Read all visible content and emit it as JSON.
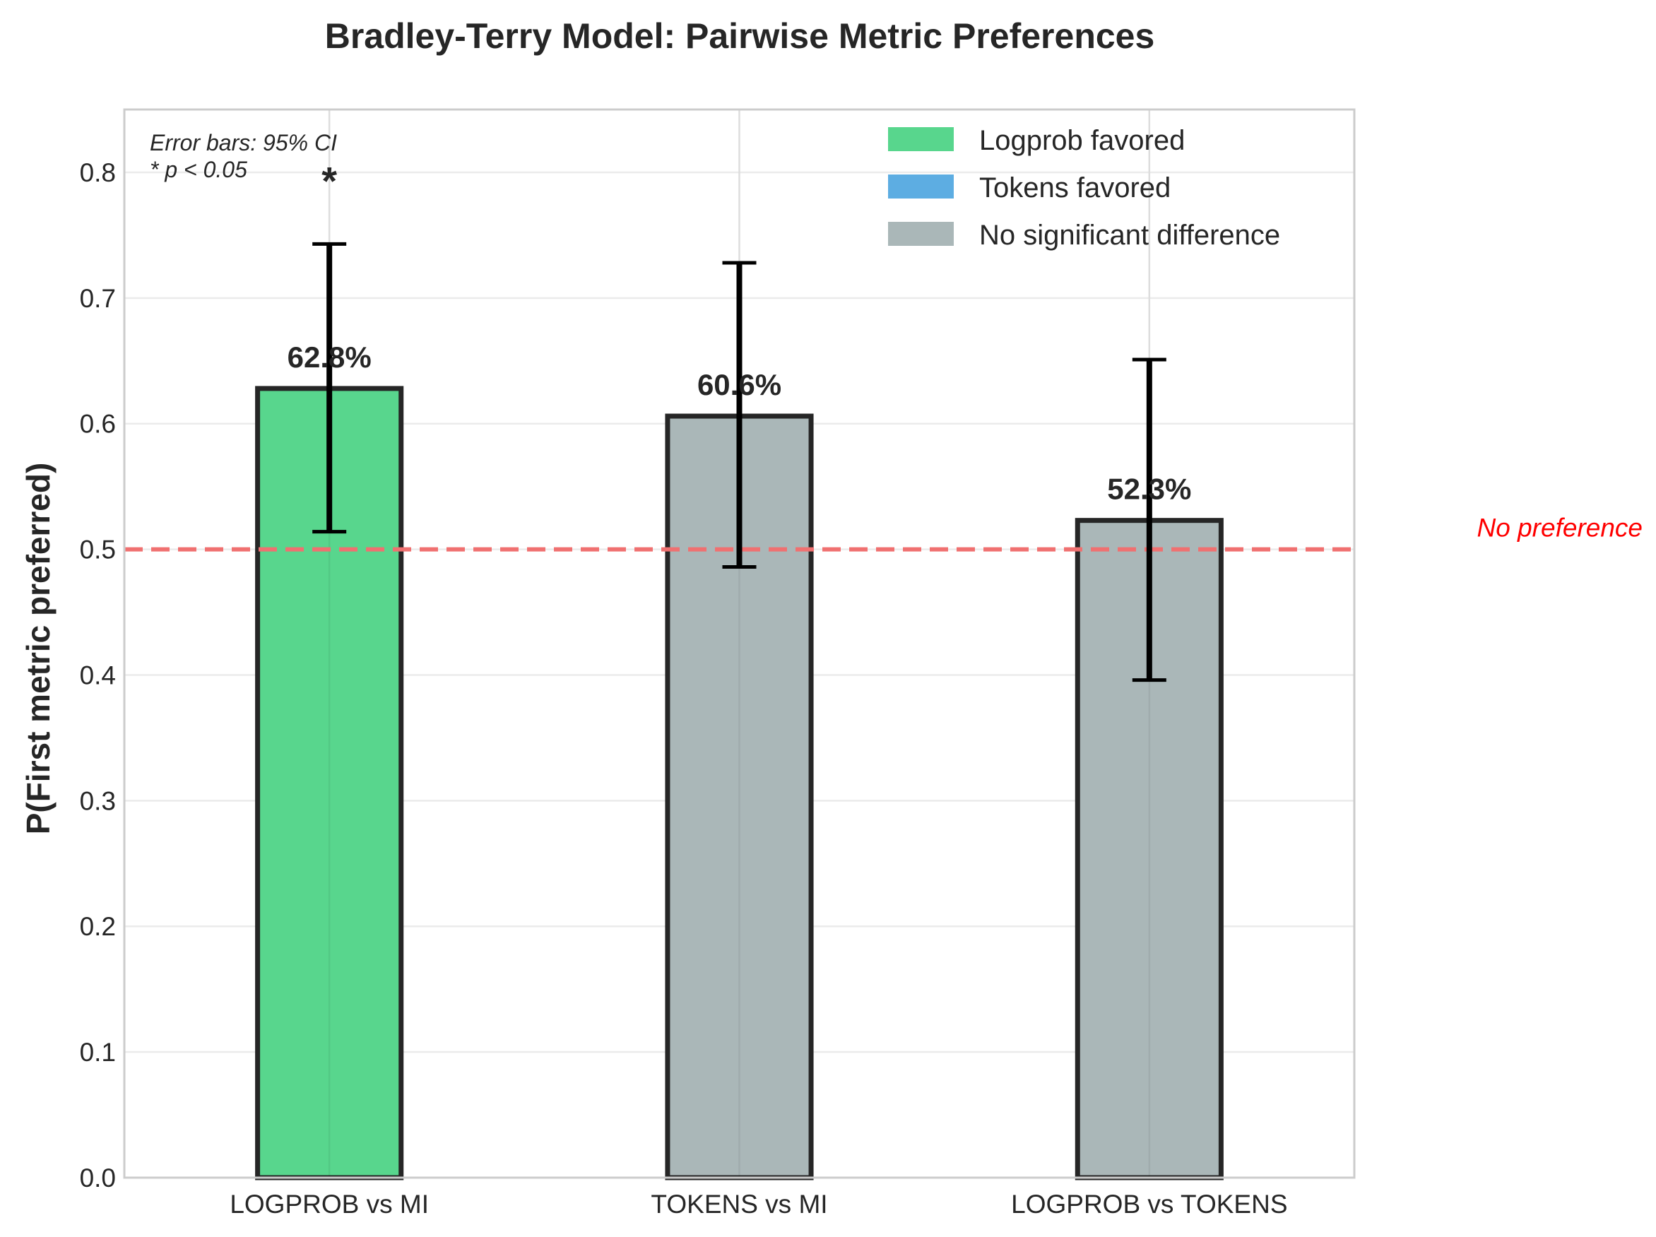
{
  "chart_data": {
    "type": "bar",
    "title": "Bradley-Terry Model: Pairwise Metric Preferences",
    "xlabel": "",
    "ylabel": "P(First metric preferred)",
    "ylim": [
      0,
      0.85
    ],
    "yticks": [
      "0.0",
      "0.1",
      "0.2",
      "0.3",
      "0.4",
      "0.5",
      "0.6",
      "0.7",
      "0.8"
    ],
    "categories": [
      "LOGPROB vs MI",
      "TOKENS vs MI",
      "LOGPROB vs TOKENS"
    ],
    "values": [
      0.628,
      0.606,
      0.523
    ],
    "value_labels": [
      "62.8%",
      "60.6%",
      "52.3%"
    ],
    "ci_lower": [
      0.514,
      0.486,
      0.396
    ],
    "ci_upper": [
      0.743,
      0.728,
      0.651
    ],
    "bar_classes": [
      "logprob",
      "none",
      "none"
    ],
    "significance_marks": [
      "*",
      "",
      ""
    ],
    "reference_line": {
      "value": 0.5,
      "label": "No preference",
      "color": "#f07070"
    },
    "annotation": [
      "Error bars: 95% CI",
      "* p < 0.05"
    ],
    "legend": {
      "placement": "top-right",
      "entries": [
        {
          "label": "Logprob favored",
          "color": "#58d68d",
          "class": "logprob"
        },
        {
          "label": "Tokens favored",
          "color": "#5dade2",
          "class": "tokens"
        },
        {
          "label": "No significant difference",
          "color": "#aab7b8",
          "class": "none"
        }
      ]
    },
    "grid": true
  }
}
